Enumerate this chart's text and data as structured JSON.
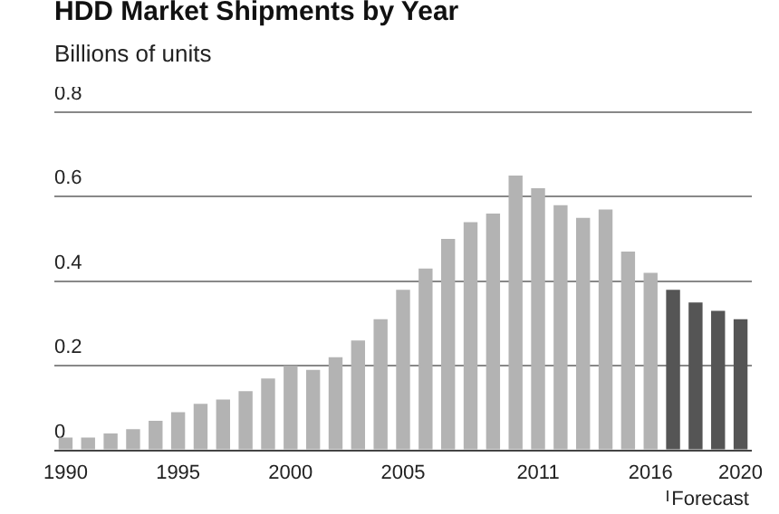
{
  "chart_data": {
    "type": "bar",
    "title": "HDD Market Shipments by Year",
    "subtitle": "Billions of units",
    "categories": [
      "1990",
      null,
      null,
      null,
      null,
      "1995",
      null,
      null,
      null,
      null,
      "2000",
      null,
      null,
      null,
      null,
      "2005",
      null,
      null,
      null,
      null,
      null,
      "2011",
      null,
      null,
      null,
      null,
      "2016",
      null,
      null,
      null,
      "2020"
    ],
    "values": [
      0.03,
      0.03,
      0.04,
      0.05,
      0.07,
      0.09,
      0.11,
      0.12,
      0.14,
      0.17,
      0.2,
      0.19,
      0.22,
      0.26,
      0.31,
      0.38,
      0.43,
      0.5,
      0.54,
      0.56,
      0.65,
      0.62,
      0.58,
      0.55,
      0.57,
      0.47,
      0.42,
      0.38,
      0.35,
      0.33,
      0.31
    ],
    "colors": [
      "#b3b3b3",
      "#b3b3b3",
      "#b3b3b3",
      "#b3b3b3",
      "#b3b3b3",
      "#b3b3b3",
      "#b3b3b3",
      "#b3b3b3",
      "#b3b3b3",
      "#b3b3b3",
      "#b3b3b3",
      "#b3b3b3",
      "#b3b3b3",
      "#b3b3b3",
      "#b3b3b3",
      "#b3b3b3",
      "#b3b3b3",
      "#b3b3b3",
      "#b3b3b3",
      "#b3b3b3",
      "#b3b3b3",
      "#b3b3b3",
      "#b3b3b3",
      "#b3b3b3",
      "#b3b3b3",
      "#b3b3b3",
      "#b3b3b3",
      "#555555",
      "#555555",
      "#555555",
      "#555555"
    ],
    "ylim": [
      0,
      0.8
    ],
    "yticks": [
      0,
      0.2,
      0.4,
      0.6,
      0.8
    ],
    "grid": "y",
    "legend": false,
    "annotations": [
      "Forecast"
    ]
  }
}
